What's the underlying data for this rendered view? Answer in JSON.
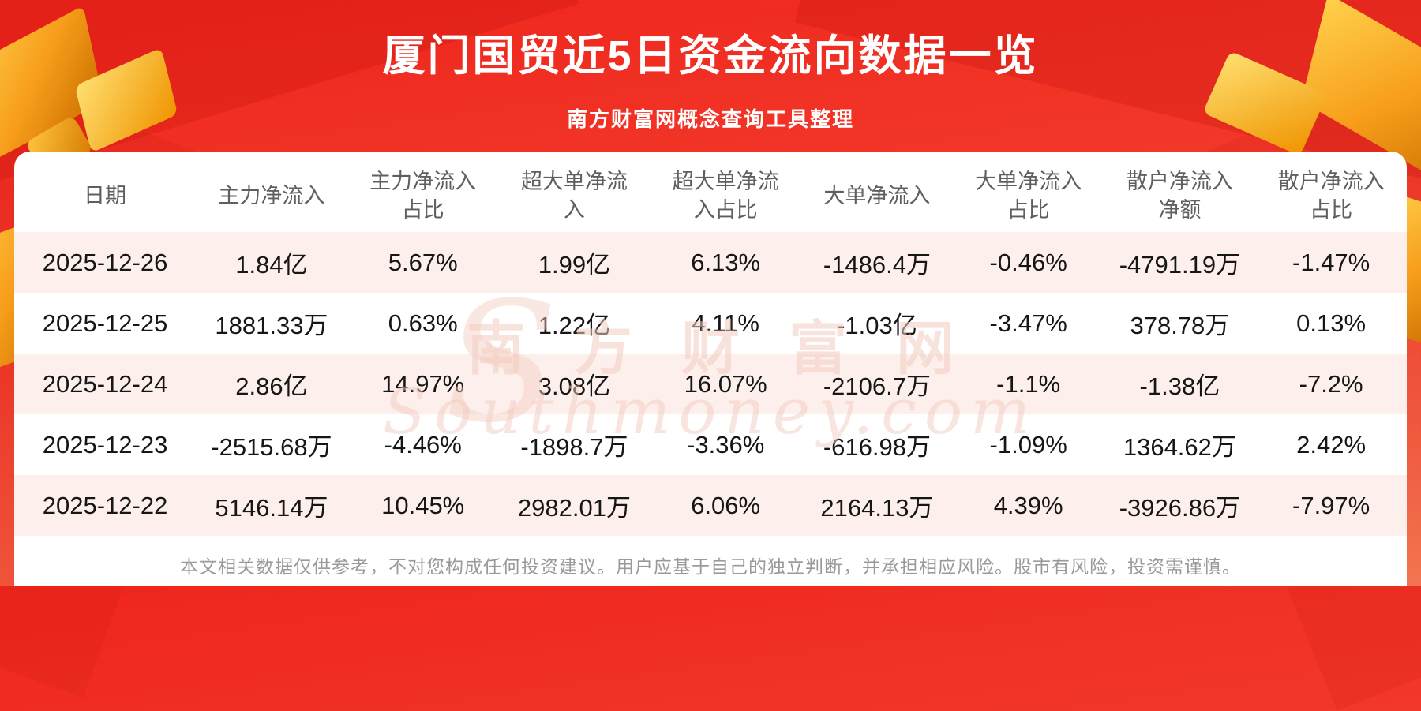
{
  "page": {
    "title": "厦门国贸近5日资金流向数据一览",
    "subtitle": "南方财富网概念查询工具整理",
    "disclaimer": "本文相关数据仅供参考，不对您构成任何投资建议。用户应基于自己的独立判断，并承担相应风险。股市有风险，投资需谨慎。"
  },
  "watermark": {
    "cn": "南方财富网",
    "en": "Southmoney.com",
    "logo": "S"
  },
  "colors": {
    "bg_red": "#ef251c",
    "bg_red_light": "#fa8a5f",
    "panel": "#ffffff",
    "row_alt": "#fdefec",
    "header_text": "#5f5f5f",
    "cell_text": "#161616",
    "footer_text": "#9a9a9a",
    "gold": "#f79d1a"
  },
  "chart_data": {
    "type": "table",
    "title": "厦门国贸近5日资金流向数据一览",
    "columns": [
      "日期",
      "主力净流入",
      "主力净流入占比",
      "超大单净流入",
      "超大单净流入占比",
      "大单净流入",
      "大单净流入占比",
      "散户净流入净额",
      "散户净流入占比"
    ],
    "rows": [
      [
        "2025-12-26",
        "1.84亿",
        "5.67%",
        "1.99亿",
        "6.13%",
        "-1486.4万",
        "-0.46%",
        "-4791.19万",
        "-1.47%"
      ],
      [
        "2025-12-25",
        "1881.33万",
        "0.63%",
        "1.22亿",
        "4.11%",
        "-1.03亿",
        "-3.47%",
        "378.78万",
        "0.13%"
      ],
      [
        "2025-12-24",
        "2.86亿",
        "14.97%",
        "3.08亿",
        "16.07%",
        "-2106.7万",
        "-1.1%",
        "-1.38亿",
        "-7.2%"
      ],
      [
        "2025-12-23",
        "-2515.68万",
        "-4.46%",
        "-1898.7万",
        "-3.36%",
        "-616.98万",
        "-1.09%",
        "1364.62万",
        "2.42%"
      ],
      [
        "2025-12-22",
        "5146.14万",
        "10.45%",
        "2982.01万",
        "6.06%",
        "2164.13万",
        "4.39%",
        "-3926.86万",
        "-7.97%"
      ]
    ]
  }
}
